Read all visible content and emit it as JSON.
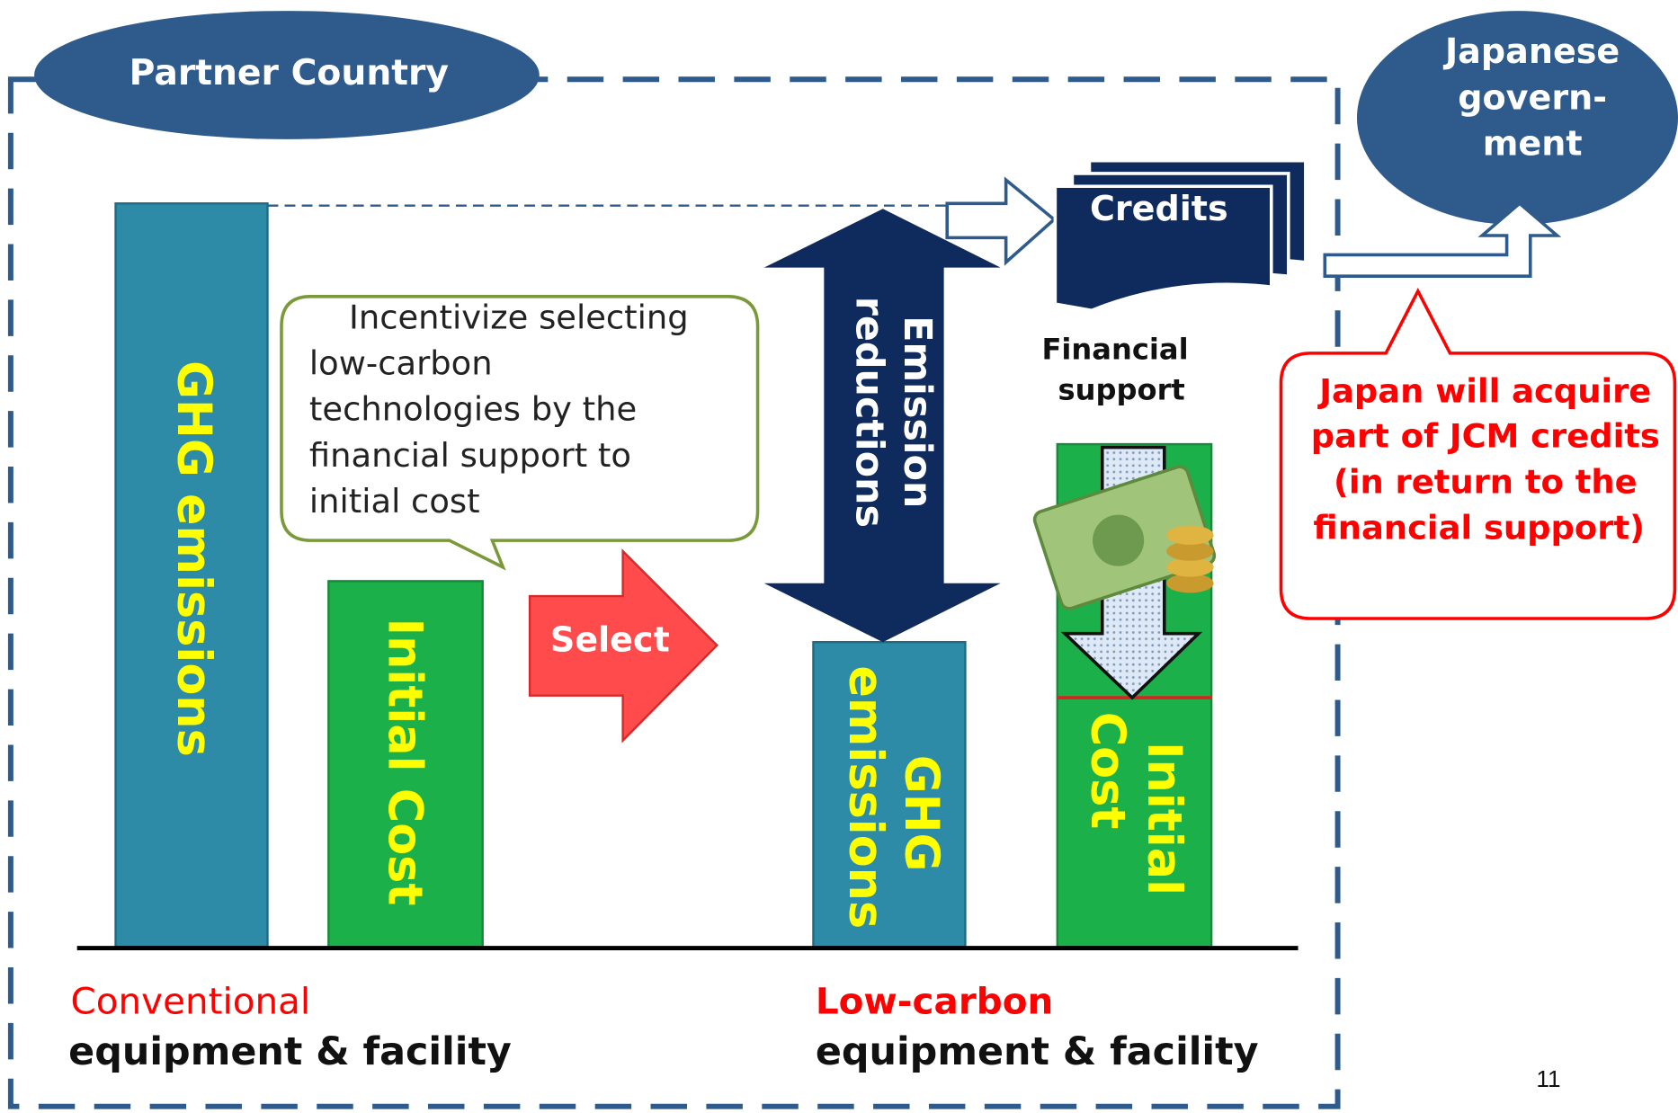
{
  "partner_country": "Partner Country",
  "japanese_government": [
    "Japanese",
    "govern-",
    "ment"
  ],
  "credits": "Credits",
  "financial_support": [
    "Financial",
    "support"
  ],
  "incentive_callout": [
    "Incentivize selecting",
    "low-carbon",
    "technologies by the",
    "financial support to",
    "initial cost"
  ],
  "select": "Select",
  "emission_reductions": [
    "Emission",
    "reductions"
  ],
  "conventional": {
    "ghg_bar": "GHG emissions",
    "cost_bar": "Initial Cost",
    "label": "Conventional",
    "sublabel": "equipment & facility"
  },
  "low_carbon": {
    "ghg_bar": [
      "GHG",
      "emissions"
    ],
    "cost_bar": [
      "Initial",
      "Cost"
    ],
    "label": "Low-carbon",
    "sublabel": "equipment & facility"
  },
  "japan_note": [
    "Japan will acquire",
    "part of JCM credits",
    "(in return to the",
    "financial support)"
  ],
  "page_number": "11"
}
